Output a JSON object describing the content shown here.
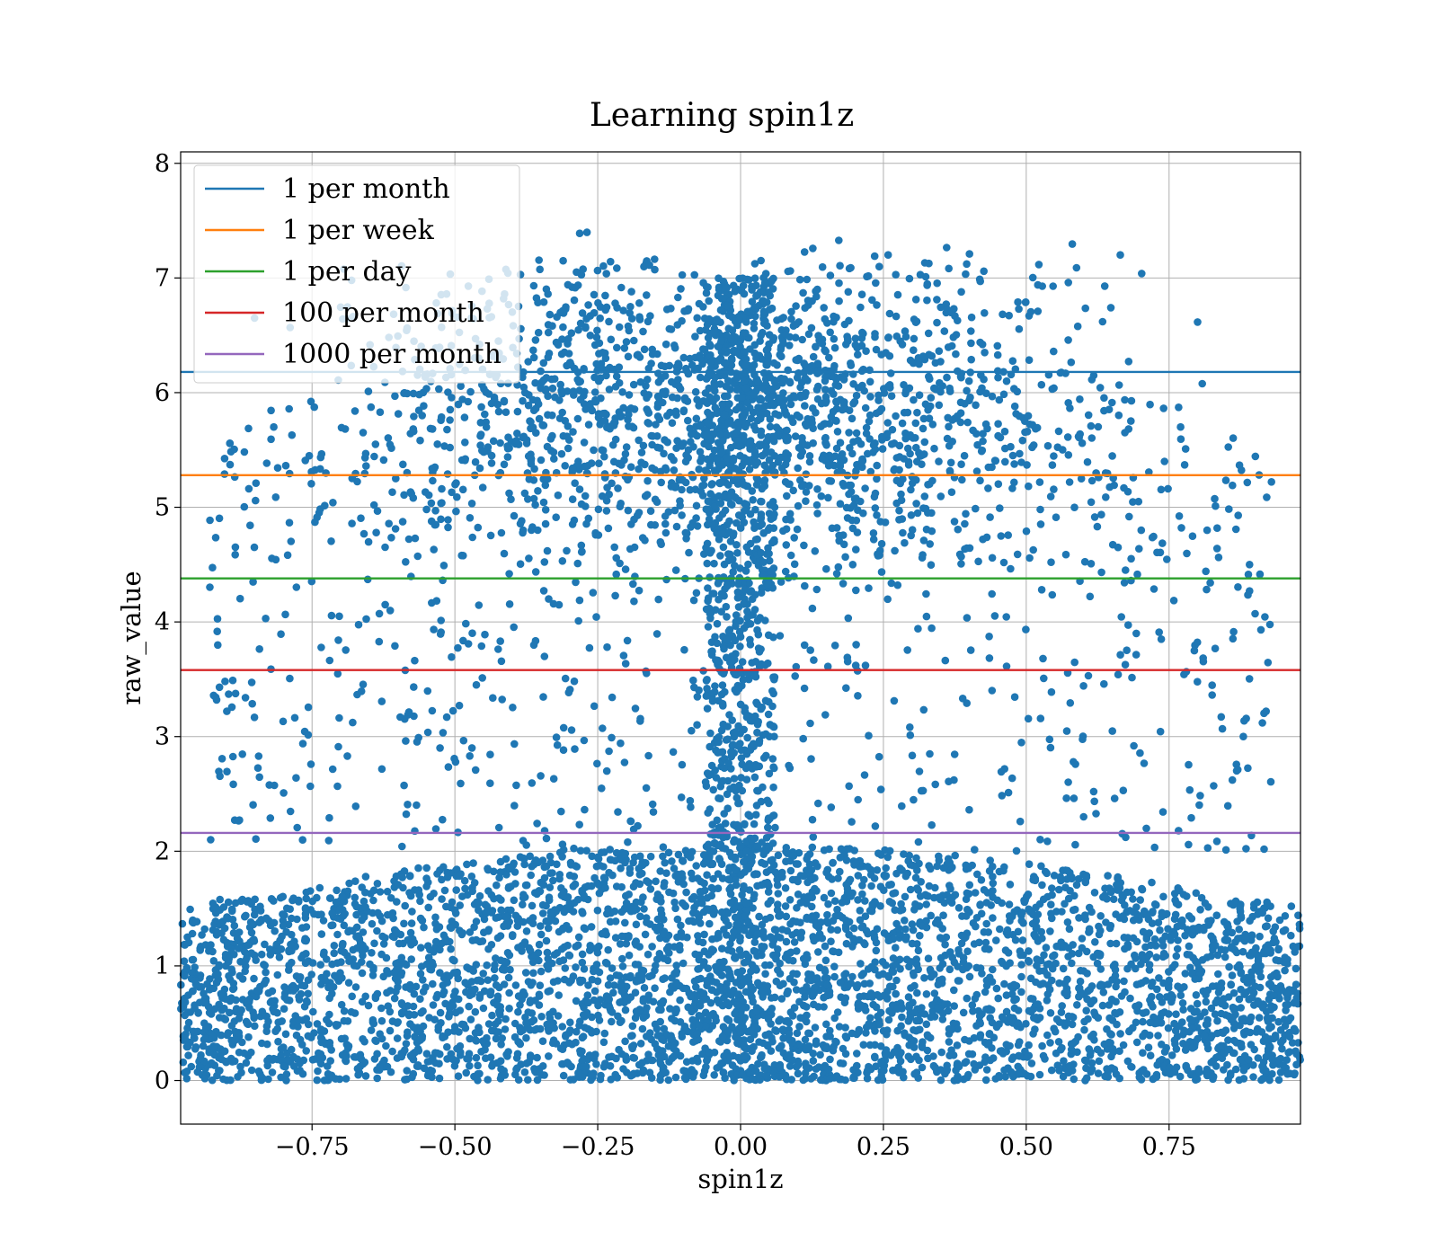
{
  "chart_data": {
    "type": "scatter",
    "title": "Learning spin1z",
    "xlabel": "spin1z",
    "ylabel": "raw_value",
    "xlim": [
      -0.98,
      0.98
    ],
    "ylim": [
      -0.38,
      8.1
    ],
    "xticks": [
      -0.75,
      -0.5,
      -0.25,
      0.0,
      0.25,
      0.5,
      0.75
    ],
    "xtick_labels": [
      "−0.75",
      "−0.50",
      "−0.25",
      "0.00",
      "0.25",
      "0.50",
      "0.75"
    ],
    "yticks": [
      0,
      1,
      2,
      3,
      4,
      5,
      6,
      7,
      8
    ],
    "ytick_labels": [
      "0",
      "1",
      "2",
      "3",
      "4",
      "5",
      "6",
      "7",
      "8"
    ],
    "grid": true,
    "legend_position": "top-left",
    "scatter_color": "#1f77b4",
    "scatter_description": "dense cloud, about 20000 points spread across x in [-0.98, 0.98]; heavily concentrated at y 0-2, a second cluster at y 5-7 near x 0, sparser points between",
    "thresholds": [
      {
        "name": "1 per month",
        "y": 6.18,
        "color": "#1f77b4"
      },
      {
        "name": "1 per week",
        "y": 5.28,
        "color": "#ff7f0e"
      },
      {
        "name": "1 per day",
        "y": 4.38,
        "color": "#2ca02c"
      },
      {
        "name": "100 per month",
        "y": 3.58,
        "color": "#d62728"
      },
      {
        "name": "1000 per month",
        "y": 2.16,
        "color": "#9467bd"
      }
    ]
  }
}
